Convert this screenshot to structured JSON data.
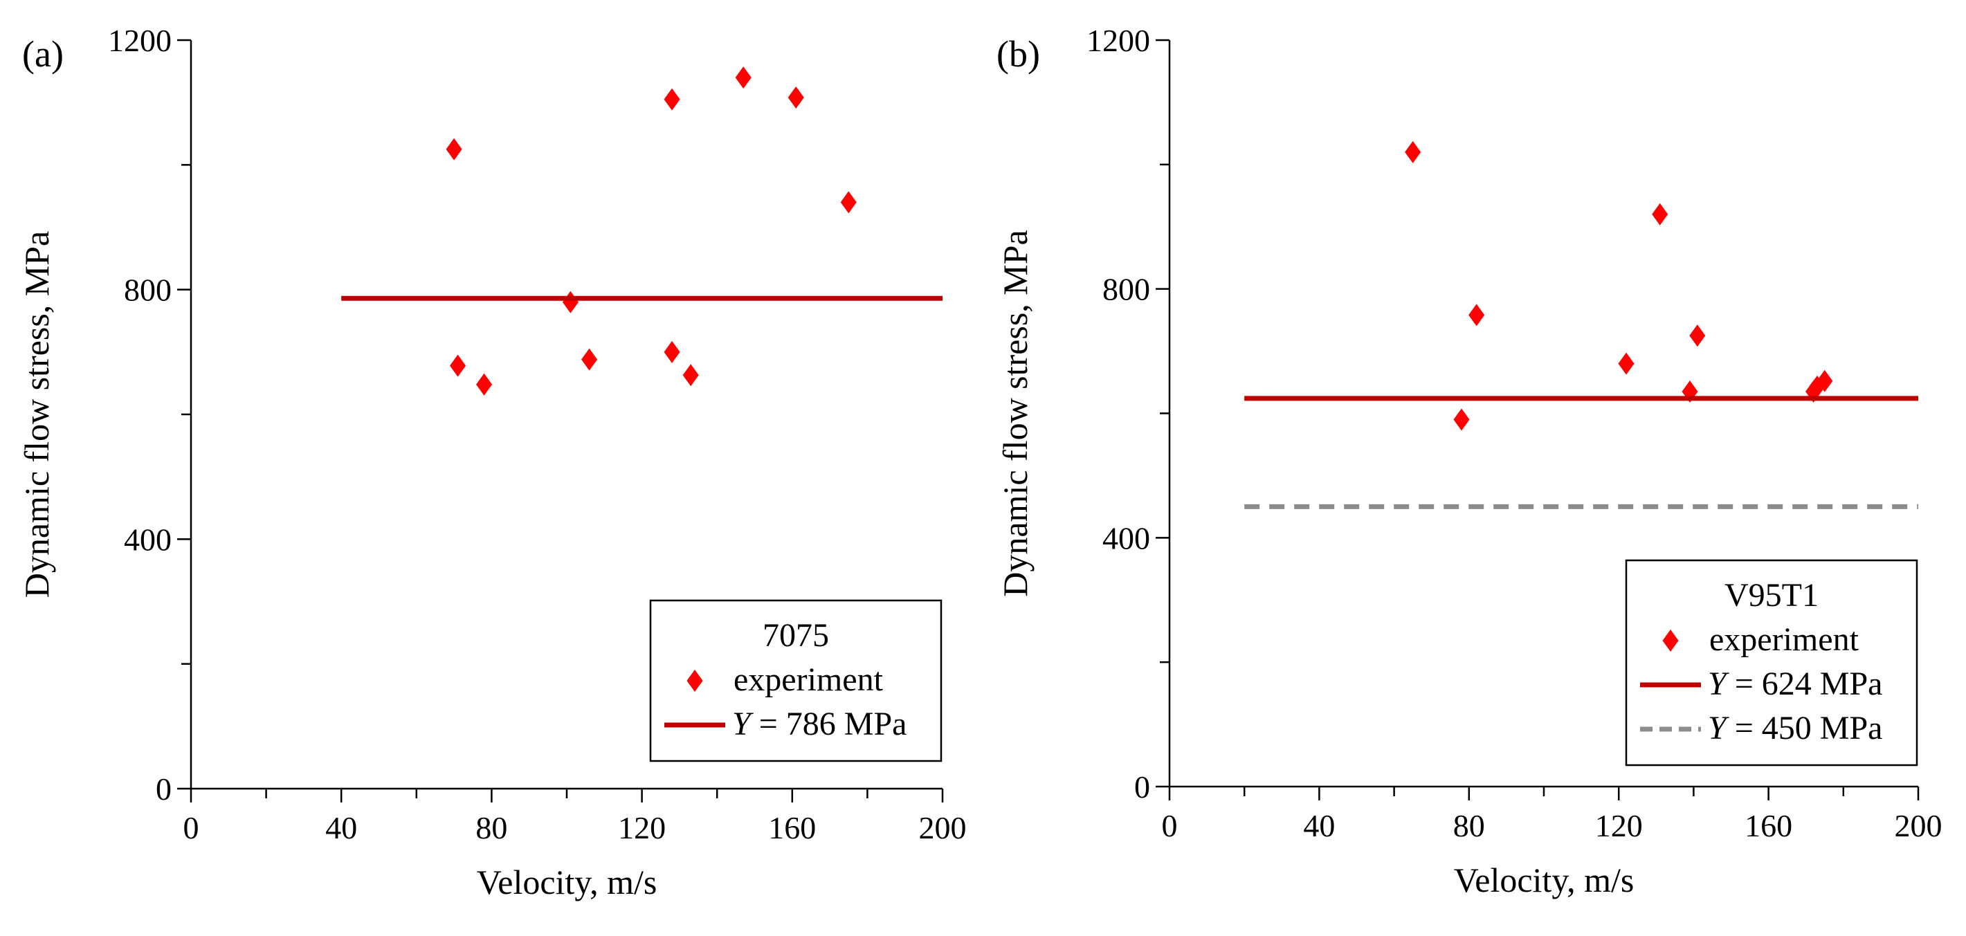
{
  "colors": {
    "marker": "#ff0000",
    "fit_line": "#c00000",
    "dashed_line": "#8c8c8c",
    "axis": "#000000"
  },
  "chart_data": [
    {
      "type": "scatter",
      "panel_label": "(a)",
      "xlabel": "Velocity, m/s",
      "ylabel": "Dynamic flow stress, MPa",
      "xlim": [
        0,
        200
      ],
      "ylim": [
        0,
        1200
      ],
      "x_ticks": [
        0,
        40,
        80,
        120,
        160,
        200
      ],
      "y_ticks": [
        0,
        400,
        800,
        1200
      ],
      "x_minor_step": 20,
      "y_minor_step": 200,
      "legend_title": "7075",
      "series": [
        {
          "name": "experiment",
          "kind": "marker",
          "color": "#ff0000",
          "points": [
            {
              "x": 70,
              "y": 1025
            },
            {
              "x": 71,
              "y": 678
            },
            {
              "x": 78,
              "y": 648
            },
            {
              "x": 101,
              "y": 780
            },
            {
              "x": 106,
              "y": 688
            },
            {
              "x": 128,
              "y": 1105
            },
            {
              "x": 128,
              "y": 700
            },
            {
              "x": 133,
              "y": 663
            },
            {
              "x": 147,
              "y": 1140
            },
            {
              "x": 161,
              "y": 1108
            },
            {
              "x": 175,
              "y": 940
            }
          ]
        },
        {
          "name_prefix": "Y",
          "name_suffix": " = 786 MPa",
          "kind": "hline",
          "y": 786,
          "x_range": [
            40,
            200
          ],
          "color": "#c00000",
          "dashed": false
        }
      ]
    },
    {
      "type": "scatter",
      "panel_label": "(b)",
      "xlabel": "Velocity, m/s",
      "ylabel": "Dynamic flow stress, MPa",
      "xlim": [
        0,
        200
      ],
      "ylim": [
        0,
        1200
      ],
      "x_ticks": [
        0,
        40,
        80,
        120,
        160,
        200
      ],
      "y_ticks": [
        0,
        400,
        800,
        1200
      ],
      "x_minor_step": 20,
      "y_minor_step": 200,
      "legend_title": "V95T1",
      "series": [
        {
          "name": "experiment",
          "kind": "marker",
          "color": "#ff0000",
          "points": [
            {
              "x": 65,
              "y": 1020
            },
            {
              "x": 78,
              "y": 590
            },
            {
              "x": 82,
              "y": 758
            },
            {
              "x": 122,
              "y": 680
            },
            {
              "x": 131,
              "y": 920
            },
            {
              "x": 139,
              "y": 635
            },
            {
              "x": 141,
              "y": 725
            },
            {
              "x": 172,
              "y": 635
            },
            {
              "x": 173,
              "y": 643
            },
            {
              "x": 175,
              "y": 652
            }
          ]
        },
        {
          "name_prefix": "Y",
          "name_suffix": " = 624 MPa",
          "kind": "hline",
          "y": 624,
          "x_range": [
            20,
            200
          ],
          "color": "#c00000",
          "dashed": false
        },
        {
          "name_prefix": "Y",
          "name_suffix": " = 450 MPa",
          "kind": "hline",
          "y": 450,
          "x_range": [
            20,
            200
          ],
          "color": "#8c8c8c",
          "dashed": true
        }
      ]
    }
  ]
}
